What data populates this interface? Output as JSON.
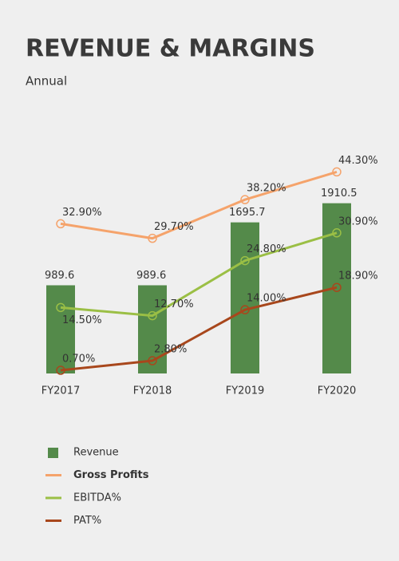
{
  "chart_data": {
    "type": "bar-line",
    "title": "REVENUE & MARGINS",
    "subtitle": "Annual",
    "categories": [
      "FY2017",
      "FY2018",
      "FY2019",
      "FY2020"
    ],
    "ylim": [
      0,
      2400
    ],
    "y2lim": [
      0,
      47
    ],
    "series": [
      {
        "name": "Revenue",
        "type": "bar",
        "color": "#548a4a",
        "values": [
          989.6,
          989.6,
          1695.7,
          1910.5
        ]
      },
      {
        "name": "Gross Profits",
        "type": "line",
        "axis": "y2",
        "color": "#f5a36b",
        "values": [
          32.9,
          29.7,
          38.2,
          44.3
        ],
        "value_labels": [
          "32.90%",
          "29.70%",
          "38.20%",
          "44.30%"
        ]
      },
      {
        "name": "EBITDA%",
        "type": "line",
        "axis": "y2",
        "color": "#9bbf45",
        "values": [
          14.5,
          12.7,
          24.8,
          30.9
        ],
        "value_labels": [
          "14.50%",
          "12.70%",
          "24.80%",
          "30.90%"
        ]
      },
      {
        "name": "PAT%",
        "type": "line",
        "axis": "y2",
        "color": "#a8471c",
        "values": [
          0.7,
          2.8,
          14.0,
          18.9
        ],
        "value_labels": [
          "0.70%",
          "2.80%",
          "14.00%",
          "18.90%"
        ]
      }
    ]
  }
}
